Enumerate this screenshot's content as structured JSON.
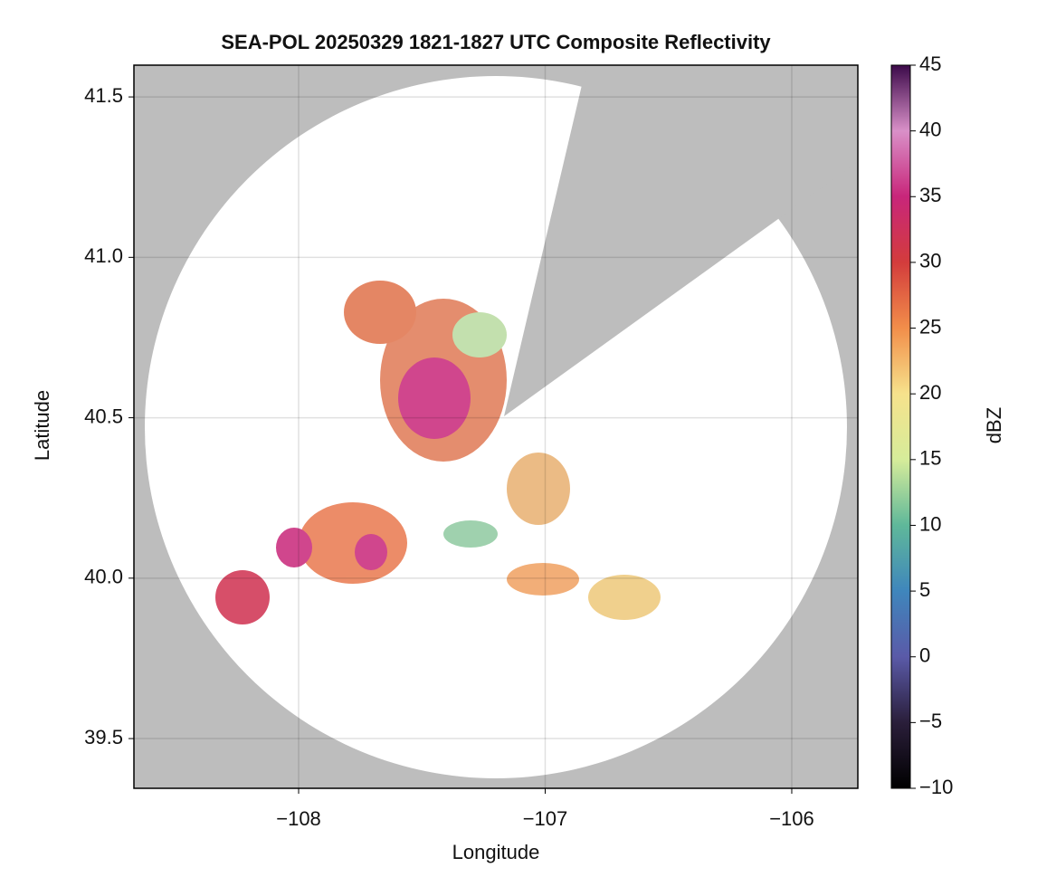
{
  "chart_data": {
    "type": "radar-map",
    "title": "SEA-POL 20250329 1821-1827 UTC Composite Reflectivity",
    "xlabel": "Longitude",
    "ylabel": "Latitude",
    "xlim": [
      -108.668,
      -105.732
    ],
    "xticks": [
      {
        "value": -108,
        "label": "−108"
      },
      {
        "value": -107,
        "label": "−107"
      },
      {
        "value": -106,
        "label": "−106"
      }
    ],
    "ylim": [
      39.345,
      41.599
    ],
    "yticks": [
      39.5,
      {
        "value": 40.0,
        "label": "40.0"
      },
      40.5,
      {
        "value": 41.0,
        "label": "41.0"
      },
      41.5
    ],
    "grid": true,
    "colorbar": {
      "label": "dBZ",
      "lim": [
        -10,
        45
      ],
      "ticks": [
        {
          "value": -10,
          "label": "−10"
        },
        {
          "value": -5,
          "label": "−5"
        },
        0,
        5,
        10,
        15,
        20,
        25,
        30,
        35,
        40,
        45
      ],
      "colors": [
        "#000000",
        "#2a1e3a",
        "#5a5aa8",
        "#3f86bc",
        "#5fb89a",
        "#d6ec9a",
        "#f6e28c",
        "#f28e4a",
        "#d33c3c",
        "#c8267a",
        "#d990c8",
        "#3c0a4a"
      ]
    }
  }
}
